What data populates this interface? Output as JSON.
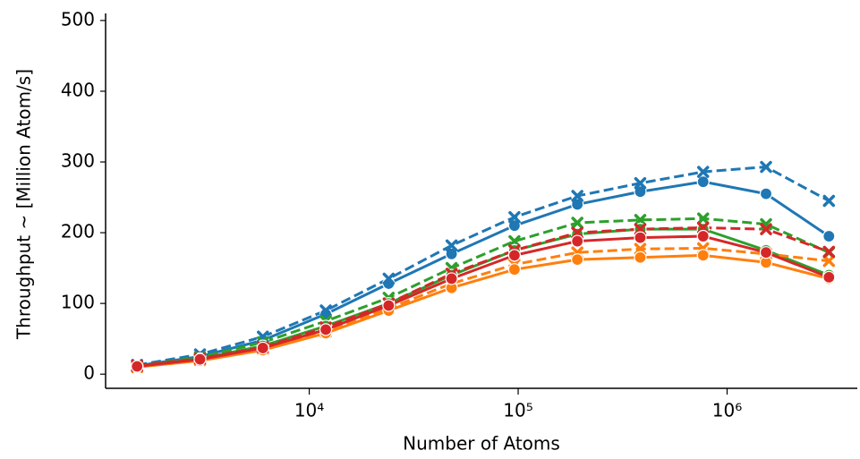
{
  "chart_data": {
    "type": "line",
    "x_label": "Number of Atoms",
    "y_label": "Throughput ~ [Million Atom/s]",
    "x": [
      1500,
      3000,
      6000,
      12000,
      24000,
      48000,
      96000,
      192000,
      384000,
      768000,
      1536000,
      3072000
    ],
    "x_log": true,
    "xlim": [
      1060,
      4200000
    ],
    "xticks": [
      {
        "value": 10000,
        "label": "10⁴"
      },
      {
        "value": 100000,
        "label": "10⁵"
      },
      {
        "value": 1000000,
        "label": "10⁶"
      }
    ],
    "ylim": [
      -20,
      510
    ],
    "yticks": [
      0,
      100,
      200,
      300,
      400,
      500
    ],
    "series": [
      {
        "color": "#1f77b4",
        "marker": "circle",
        "dashed": false,
        "values": [
          12,
          25,
          48,
          85,
          128,
          170,
          210,
          240,
          258,
          272,
          255,
          195
        ]
      },
      {
        "color": "#1f77b4",
        "marker": "x",
        "dashed": true,
        "values": [
          13,
          28,
          53,
          90,
          135,
          182,
          222,
          252,
          270,
          286,
          293,
          245
        ]
      },
      {
        "color": "#2ca02c",
        "marker": "x",
        "dashed": true,
        "values": [
          12,
          24,
          45,
          75,
          108,
          150,
          188,
          214,
          218,
          220,
          212,
          172
        ]
      },
      {
        "color": "#2ca02c",
        "marker": "circle",
        "dashed": false,
        "values": [
          11,
          22,
          40,
          68,
          100,
          140,
          175,
          198,
          205,
          205,
          175,
          140
        ]
      },
      {
        "color": "#ff7f0e",
        "marker": "x",
        "dashed": true,
        "values": [
          10,
          20,
          36,
          60,
          93,
          128,
          155,
          172,
          177,
          178,
          170,
          160
        ]
      },
      {
        "color": "#ff7f0e",
        "marker": "circle",
        "dashed": false,
        "values": [
          10,
          19,
          34,
          58,
          90,
          122,
          148,
          162,
          165,
          168,
          158,
          135
        ]
      },
      {
        "color": "#d62728",
        "marker": "x",
        "dashed": true,
        "values": [
          12,
          22,
          38,
          66,
          100,
          142,
          175,
          200,
          205,
          207,
          205,
          173
        ]
      },
      {
        "color": "#d62728",
        "marker": "circle",
        "dashed": false,
        "values": [
          11,
          21,
          37,
          63,
          97,
          135,
          168,
          188,
          193,
          195,
          172,
          137
        ]
      }
    ]
  }
}
